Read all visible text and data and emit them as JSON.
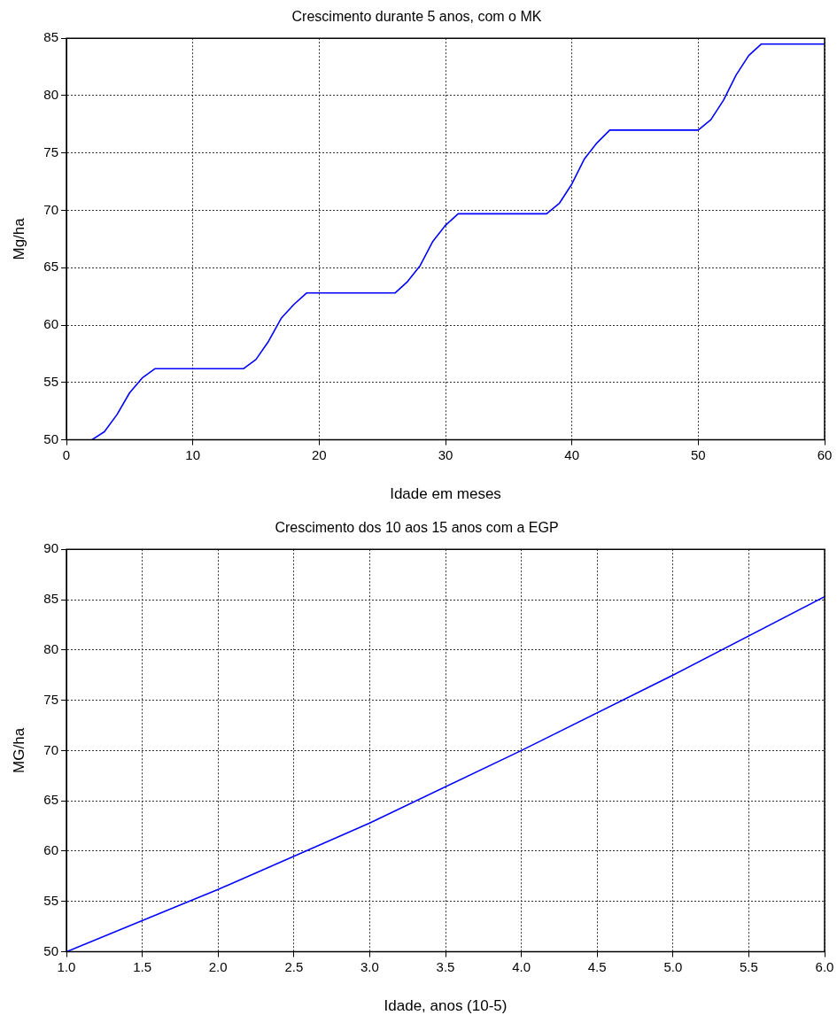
{
  "chart_data": [
    {
      "type": "line",
      "title": "Crescimento durante 5 anos, com o MK",
      "xlabel": "Idade em meses",
      "ylabel": "Mg/ha",
      "x": [
        2,
        3,
        4,
        5,
        6,
        7,
        8,
        9,
        10,
        11,
        12,
        13,
        14,
        15,
        16,
        17,
        18,
        19,
        20,
        21,
        22,
        23,
        24,
        25,
        26,
        27,
        28,
        29,
        30,
        31,
        32,
        33,
        34,
        35,
        36,
        37,
        38,
        39,
        40,
        41,
        42,
        43,
        44,
        45,
        46,
        47,
        48,
        49,
        50,
        51,
        52,
        53,
        54,
        55,
        56,
        57,
        58,
        59,
        60
      ],
      "series": [
        {
          "color": "#0000ff",
          "values": [
            50,
            50.7,
            52.2,
            54.1,
            55.4,
            56.2,
            56.2,
            56.2,
            56.2,
            56.2,
            56.2,
            56.2,
            56.2,
            57.0,
            58.6,
            60.6,
            61.8,
            62.8,
            62.8,
            62.8,
            62.8,
            62.8,
            62.8,
            62.8,
            62.8,
            63.8,
            65.2,
            67.3,
            68.7,
            69.7,
            69.7,
            69.7,
            69.7,
            69.7,
            69.7,
            69.7,
            69.7,
            70.6,
            72.3,
            74.5,
            75.9,
            77.0,
            77.0,
            77.0,
            77.0,
            77.0,
            77.0,
            77.0,
            77.0,
            77.9,
            79.6,
            81.8,
            83.5,
            84.5,
            84.5,
            84.5,
            84.5,
            84.5,
            84.5
          ]
        }
      ],
      "xlim": [
        0,
        60
      ],
      "xticks": [
        0,
        10,
        20,
        30,
        40,
        50,
        60
      ],
      "ylim": [
        50,
        85
      ],
      "yticks": [
        50,
        55,
        60,
        65,
        70,
        75,
        80,
        85
      ],
      "grid": true,
      "legend": false,
      "marker": "none",
      "line_style": "solid"
    },
    {
      "type": "line",
      "title": "Crescimento dos 10 aos 15 anos com a EGP",
      "xlabel": "Idade, anos (10-5)",
      "ylabel": "MG/ha",
      "x": [
        1,
        2,
        3,
        4,
        5,
        6
      ],
      "series": [
        {
          "color": "#0000ff",
          "values": [
            50,
            56.2,
            62.8,
            70.0,
            77.5,
            85.3
          ]
        }
      ],
      "xlim": [
        1,
        6
      ],
      "xticks": [
        {
          "value": 1,
          "label": "1.0"
        },
        {
          "value": 1.5,
          "label": "1.5"
        },
        {
          "value": 2,
          "label": "2.0"
        },
        {
          "value": 2.5,
          "label": "2.5"
        },
        {
          "value": 3,
          "label": "3.0"
        },
        {
          "value": 3.5,
          "label": "3.5"
        },
        {
          "value": 4,
          "label": "4.0"
        },
        {
          "value": 4.5,
          "label": "4.5"
        },
        {
          "value": 5,
          "label": "5.0"
        },
        {
          "value": 5.5,
          "label": "5.5"
        },
        {
          "value": 6,
          "label": "6.0"
        }
      ],
      "ylim": [
        50,
        90
      ],
      "yticks": [
        50,
        55,
        60,
        65,
        70,
        75,
        80,
        85,
        90
      ],
      "grid": true,
      "legend": false,
      "marker": "none",
      "line_style": "solid"
    }
  ]
}
